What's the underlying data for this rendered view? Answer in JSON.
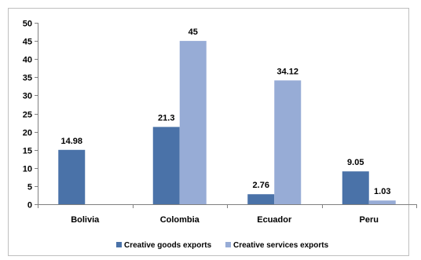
{
  "chart_data": {
    "type": "bar",
    "categories": [
      "Bolivia",
      "Colombia",
      "Ecuador",
      "Peru"
    ],
    "series": [
      {
        "name": "Creative goods exports",
        "color": "#4a72a8",
        "values": [
          14.98,
          21.3,
          2.76,
          9.05
        ],
        "labels": [
          "14.98",
          "21.3",
          "2.76",
          "9.05"
        ]
      },
      {
        "name": "Creative services exports",
        "color": "#97acd6",
        "values": [
          null,
          45,
          34.12,
          1.03
        ],
        "labels": [
          null,
          "45",
          "34.12",
          "1.03"
        ]
      }
    ],
    "ylim": [
      0,
      50
    ],
    "yticks": [
      0,
      5,
      10,
      15,
      20,
      25,
      30,
      35,
      40,
      45,
      50
    ],
    "grid": false,
    "legend_position": "bottom",
    "title": "",
    "xlabel": "",
    "ylabel": ""
  }
}
